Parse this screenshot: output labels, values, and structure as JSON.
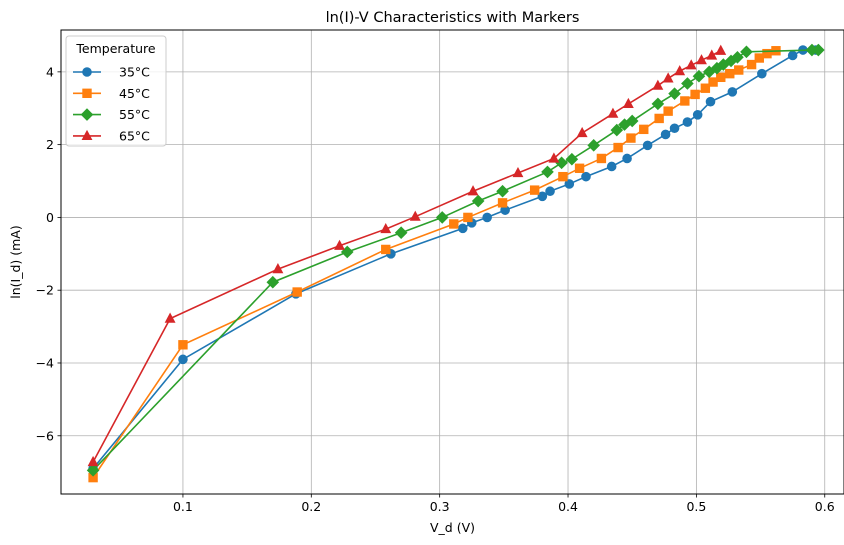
{
  "chart_data": {
    "type": "line",
    "title": "ln(I)-V Characteristics with Markers",
    "xlabel": "V_d (V)",
    "ylabel": "ln(I_d) (mA)",
    "xlim": [
      0.005,
      0.615
    ],
    "ylim": [
      -7.6,
      5.15
    ],
    "xticks": [
      0.1,
      0.2,
      0.3,
      0.4,
      0.5,
      0.6
    ],
    "xtick_labels": [
      "0.1",
      "0.2",
      "0.3",
      "0.4",
      "0.5",
      "0.6"
    ],
    "yticks": [
      -6,
      -4,
      -2,
      0,
      2,
      4
    ],
    "ytick_labels": [
      "−6",
      "−4",
      "−2",
      "0",
      "2",
      "4"
    ],
    "grid": true,
    "legend": {
      "title": "Temperature",
      "placement": "top-left"
    },
    "series": [
      {
        "name": "35°C",
        "color": "#1f77b4",
        "marker": "circle",
        "x": [
          0.03,
          0.1,
          0.188,
          0.262,
          0.318,
          0.325,
          0.337,
          0.351,
          0.38,
          0.386,
          0.401,
          0.414,
          0.434,
          0.446,
          0.462,
          0.476,
          0.483,
          0.493,
          0.501,
          0.511,
          0.528,
          0.551,
          0.575,
          0.583,
          0.593
        ],
        "y": [
          -6.9,
          -3.9,
          -2.1,
          -1.0,
          -0.3,
          -0.15,
          0.0,
          0.2,
          0.58,
          0.72,
          0.92,
          1.12,
          1.4,
          1.62,
          1.98,
          2.28,
          2.45,
          2.62,
          2.82,
          3.18,
          3.45,
          3.95,
          4.45,
          4.6,
          4.6
        ]
      },
      {
        "name": "45°C",
        "color": "#ff7f0e",
        "marker": "square",
        "x": [
          0.03,
          0.1,
          0.189,
          0.258,
          0.311,
          0.322,
          0.349,
          0.374,
          0.396,
          0.409,
          0.426,
          0.439,
          0.449,
          0.459,
          0.471,
          0.478,
          0.491,
          0.499,
          0.507,
          0.513,
          0.519,
          0.526,
          0.533,
          0.543,
          0.549,
          0.555,
          0.562
        ],
        "y": [
          -7.15,
          -3.5,
          -2.05,
          -0.88,
          -0.18,
          0.0,
          0.4,
          0.75,
          1.12,
          1.35,
          1.62,
          1.92,
          2.18,
          2.42,
          2.72,
          2.92,
          3.2,
          3.38,
          3.55,
          3.72,
          3.85,
          3.95,
          4.05,
          4.2,
          4.38,
          4.5,
          4.58
        ]
      },
      {
        "name": "55°C",
        "color": "#2ca02c",
        "marker": "diamond",
        "x": [
          0.03,
          0.17,
          0.228,
          0.27,
          0.302,
          0.33,
          0.349,
          0.384,
          0.395,
          0.403,
          0.42,
          0.438,
          0.444,
          0.45,
          0.47,
          0.483,
          0.493,
          0.502,
          0.51,
          0.516,
          0.521,
          0.527,
          0.532,
          0.539,
          0.59,
          0.595
        ],
        "y": [
          -6.95,
          -1.78,
          -0.95,
          -0.42,
          0.0,
          0.45,
          0.72,
          1.25,
          1.5,
          1.6,
          1.98,
          2.4,
          2.55,
          2.65,
          3.12,
          3.4,
          3.68,
          3.88,
          4.0,
          4.1,
          4.2,
          4.3,
          4.4,
          4.55,
          4.6,
          4.6
        ]
      },
      {
        "name": "65°C",
        "color": "#d62728",
        "marker": "triangle",
        "x": [
          0.03,
          0.09,
          0.174,
          0.222,
          0.258,
          0.281,
          0.326,
          0.361,
          0.389,
          0.411,
          0.435,
          0.447,
          0.47,
          0.478,
          0.487,
          0.496,
          0.504,
          0.512,
          0.519
        ],
        "y": [
          -6.72,
          -2.78,
          -1.42,
          -0.78,
          -0.32,
          0.02,
          0.72,
          1.22,
          1.62,
          2.32,
          2.85,
          3.12,
          3.62,
          3.82,
          4.02,
          4.18,
          4.32,
          4.45,
          4.58
        ]
      }
    ]
  }
}
